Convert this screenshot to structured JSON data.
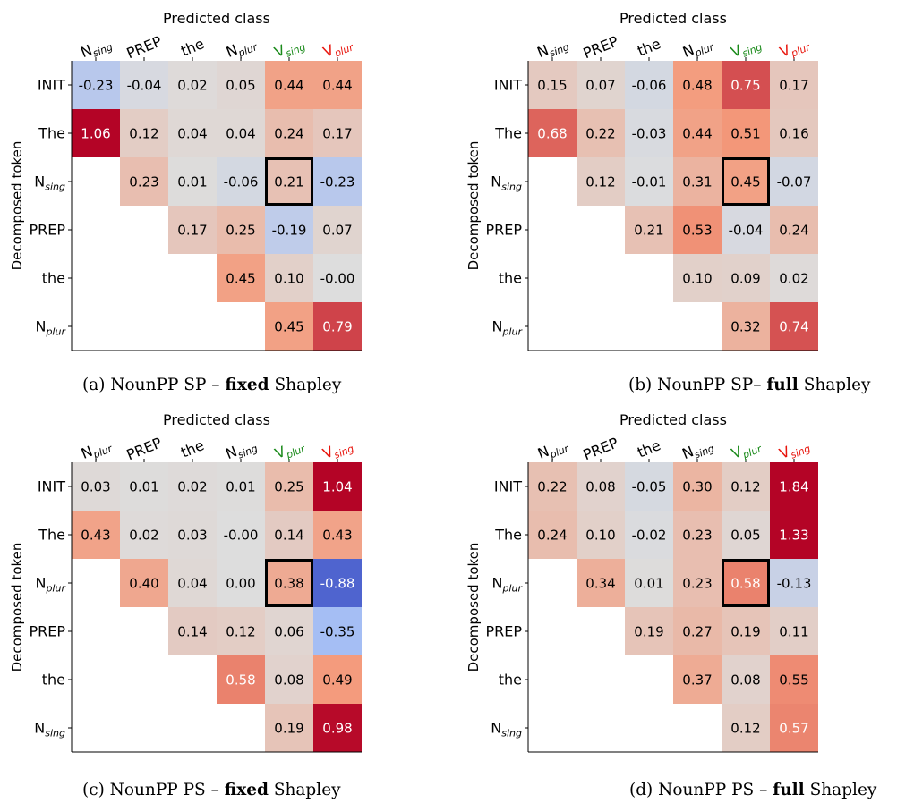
{
  "chart_data": [
    {
      "type": "heatmap",
      "title": "Predicted class",
      "ylabel": "Decomposed token",
      "caption": {
        "pre": "(a) NounPP SP – ",
        "bold": "fixed",
        "post": " Shapley"
      },
      "x_labels": [
        {
          "base": "N",
          "sub": "sing",
          "color": "#000000"
        },
        {
          "base": "PREP",
          "sub": "",
          "color": "#000000"
        },
        {
          "base": "the",
          "sub": "",
          "color": "#000000"
        },
        {
          "base": "N",
          "sub": "plur",
          "color": "#000000"
        },
        {
          "base": "V",
          "sub": "sing",
          "color": "#1a8a1a"
        },
        {
          "base": "V",
          "sub": "plur",
          "color": "#e8150d"
        }
      ],
      "y_labels": [
        {
          "base": "INIT",
          "sub": ""
        },
        {
          "base": "The",
          "sub": ""
        },
        {
          "base": "N",
          "sub": "sing"
        },
        {
          "base": "PREP",
          "sub": ""
        },
        {
          "base": "the",
          "sub": ""
        },
        {
          "base": "N",
          "sub": "plur"
        }
      ],
      "values": [
        [
          "-0.23",
          "-0.04",
          "0.02",
          "0.05",
          "0.44",
          "0.44"
        ],
        [
          "1.06",
          "0.12",
          "0.04",
          "0.04",
          "0.24",
          "0.17"
        ],
        [
          null,
          "0.23",
          "0.01",
          "-0.06",
          "0.21",
          "-0.23"
        ],
        [
          null,
          null,
          "0.17",
          "0.25",
          "-0.19",
          "0.07"
        ],
        [
          null,
          null,
          null,
          "0.45",
          "0.10",
          "-0.00"
        ],
        [
          null,
          null,
          null,
          null,
          "0.45",
          "0.79"
        ]
      ],
      "highlight": {
        "row": 2,
        "col": 4
      }
    },
    {
      "type": "heatmap",
      "title": "Predicted class",
      "ylabel": "Decomposed token",
      "caption": {
        "pre": "(b) NounPP SP– ",
        "bold": "full",
        "post": " Shapley"
      },
      "x_labels": [
        {
          "base": "N",
          "sub": "sing",
          "color": "#000000"
        },
        {
          "base": "PREP",
          "sub": "",
          "color": "#000000"
        },
        {
          "base": "the",
          "sub": "",
          "color": "#000000"
        },
        {
          "base": "N",
          "sub": "plur",
          "color": "#000000"
        },
        {
          "base": "V",
          "sub": "sing",
          "color": "#1a8a1a"
        },
        {
          "base": "V",
          "sub": "plur",
          "color": "#e8150d"
        }
      ],
      "y_labels": [
        {
          "base": "INIT",
          "sub": ""
        },
        {
          "base": "The",
          "sub": ""
        },
        {
          "base": "N",
          "sub": "sing"
        },
        {
          "base": "PREP",
          "sub": ""
        },
        {
          "base": "the",
          "sub": ""
        },
        {
          "base": "N",
          "sub": "plur"
        }
      ],
      "values": [
        [
          "0.15",
          "0.07",
          "-0.06",
          "0.48",
          "0.75",
          "0.17"
        ],
        [
          "0.68",
          "0.22",
          "-0.03",
          "0.44",
          "0.51",
          "0.16"
        ],
        [
          null,
          "0.12",
          "-0.01",
          "0.31",
          "0.45",
          "-0.07"
        ],
        [
          null,
          null,
          "0.21",
          "0.53",
          "-0.04",
          "0.24"
        ],
        [
          null,
          null,
          null,
          "0.10",
          "0.09",
          "0.02"
        ],
        [
          null,
          null,
          null,
          null,
          "0.32",
          "0.74"
        ]
      ],
      "highlight": {
        "row": 2,
        "col": 4
      }
    },
    {
      "type": "heatmap",
      "title": "Predicted class",
      "ylabel": "Decomposed token",
      "caption": {
        "pre": "(c) NounPP PS – ",
        "bold": "fixed",
        "post": " Shapley"
      },
      "x_labels": [
        {
          "base": "N",
          "sub": "plur",
          "color": "#000000"
        },
        {
          "base": "PREP",
          "sub": "",
          "color": "#000000"
        },
        {
          "base": "the",
          "sub": "",
          "color": "#000000"
        },
        {
          "base": "N",
          "sub": "sing",
          "color": "#000000"
        },
        {
          "base": "V",
          "sub": "plur",
          "color": "#1a8a1a"
        },
        {
          "base": "V",
          "sub": "sing",
          "color": "#e8150d"
        }
      ],
      "y_labels": [
        {
          "base": "INIT",
          "sub": ""
        },
        {
          "base": "The",
          "sub": ""
        },
        {
          "base": "N",
          "sub": "plur"
        },
        {
          "base": "PREP",
          "sub": ""
        },
        {
          "base": "the",
          "sub": ""
        },
        {
          "base": "N",
          "sub": "sing"
        }
      ],
      "values": [
        [
          "0.03",
          "0.01",
          "0.02",
          "0.01",
          "0.25",
          "1.04"
        ],
        [
          "0.43",
          "0.02",
          "0.03",
          "-0.00",
          "0.14",
          "0.43"
        ],
        [
          null,
          "0.40",
          "0.04",
          "0.00",
          "0.38",
          "-0.88"
        ],
        [
          null,
          null,
          "0.14",
          "0.12",
          "0.06",
          "-0.35"
        ],
        [
          null,
          null,
          null,
          "0.58",
          "0.08",
          "0.49"
        ],
        [
          null,
          null,
          null,
          null,
          "0.19",
          "0.98"
        ]
      ],
      "highlight": {
        "row": 2,
        "col": 4
      }
    },
    {
      "type": "heatmap",
      "title": "Predicted class",
      "ylabel": "Decomposed token",
      "caption": {
        "pre": "(d) NounPP PS – ",
        "bold": "full",
        "post": " Shapley"
      },
      "x_labels": [
        {
          "base": "N",
          "sub": "plur",
          "color": "#000000"
        },
        {
          "base": "PREP",
          "sub": "",
          "color": "#000000"
        },
        {
          "base": "the",
          "sub": "",
          "color": "#000000"
        },
        {
          "base": "N",
          "sub": "sing",
          "color": "#000000"
        },
        {
          "base": "V",
          "sub": "plur",
          "color": "#1a8a1a"
        },
        {
          "base": "V",
          "sub": "sing",
          "color": "#e8150d"
        }
      ],
      "y_labels": [
        {
          "base": "INIT",
          "sub": ""
        },
        {
          "base": "The",
          "sub": ""
        },
        {
          "base": "N",
          "sub": "plur"
        },
        {
          "base": "PREP",
          "sub": ""
        },
        {
          "base": "the",
          "sub": ""
        },
        {
          "base": "N",
          "sub": "sing"
        }
      ],
      "values": [
        [
          "0.22",
          "0.08",
          "-0.05",
          "0.30",
          "0.12",
          "1.84"
        ],
        [
          "0.24",
          "0.10",
          "-0.02",
          "0.23",
          "0.05",
          "1.33"
        ],
        [
          null,
          "0.34",
          "0.01",
          "0.23",
          "0.58",
          "-0.13"
        ],
        [
          null,
          null,
          "0.19",
          "0.27",
          "0.19",
          "0.11"
        ],
        [
          null,
          null,
          null,
          "0.37",
          "0.08",
          "0.55"
        ],
        [
          null,
          null,
          null,
          null,
          "0.12",
          "0.57"
        ]
      ],
      "highlight": {
        "row": 2,
        "col": 4
      }
    }
  ]
}
